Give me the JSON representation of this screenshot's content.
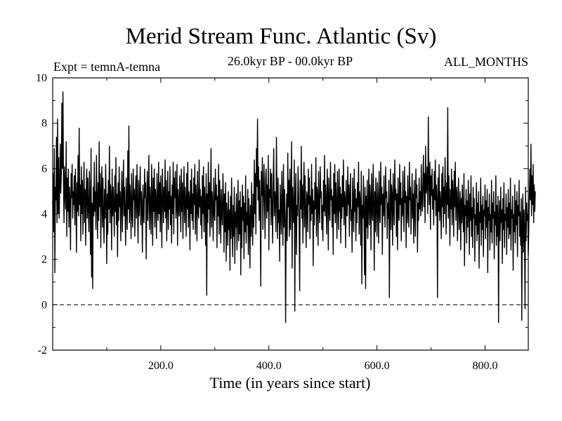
{
  "chart_data": {
    "type": "line",
    "title": "Merid Stream Func. Atlantic (Sv)",
    "subtitle_left": "Expt = temnA-temna",
    "subtitle_center": "26.0kyr BP - 00.0kyr BP",
    "subtitle_right": "ALL_MONTHS",
    "xlabel": "Time (in years since start)",
    "ylabel": "",
    "xlim": [
      0,
      880
    ],
    "ylim": [
      -2,
      10
    ],
    "x_ticks": [
      200,
      400,
      600,
      800
    ],
    "x_tick_labels": [
      "200.0",
      "400.0",
      "600.0",
      "800.0"
    ],
    "y_ticks": [
      -2,
      0,
      2,
      4,
      6,
      8,
      10
    ],
    "y_tick_labels": [
      "-2",
      "0",
      "2",
      "4",
      "6",
      "8",
      "10"
    ],
    "reference_line": {
      "y": 0,
      "style": "dashed"
    },
    "series": [
      {
        "name": "Merid Stream Func. Atlantic",
        "x_start": 0,
        "x_step": 1,
        "values": [
          4.4,
          5.8,
          3.2,
          6.9,
          1.4,
          5.2,
          4.6,
          7.4,
          3.6,
          8.2,
          4.0,
          6.5,
          3.8,
          5.2,
          7.1,
          4.9,
          5.8,
          8.9,
          6.0,
          9.4,
          5.4,
          3.6,
          6.1,
          5.0,
          4.2,
          7.2,
          3.0,
          5.6,
          4.1,
          6.0,
          3.4,
          5.2,
          4.6,
          2.4,
          5.8,
          4.7,
          6.2,
          3.8,
          5.0,
          4.4,
          5.7,
          3.5,
          6.0,
          4.8,
          2.3,
          5.4,
          4.1,
          6.6,
          3.9,
          7.8,
          4.4,
          5.3,
          2.8,
          6.1,
          4.0,
          5.5,
          3.1,
          4.8,
          6.3,
          3.6,
          5.1,
          2.6,
          4.9,
          6.0,
          3.8,
          5.6,
          4.2,
          3.2,
          5.9,
          4.6,
          2.2,
          6.9,
          1.2,
          4.5,
          0.7,
          5.2,
          3.9,
          6.3,
          4.1,
          5.0,
          3.3,
          6.6,
          4.7,
          2.9,
          5.4,
          3.7,
          7.2,
          4.3,
          5.8,
          2.5,
          4.9,
          6.1,
          3.4,
          5.6,
          4.0,
          2.7,
          5.1,
          3.8,
          6.2,
          4.6,
          1.8,
          4.9,
          3.1,
          5.5,
          4.2,
          7.0,
          3.6,
          5.3,
          4.8,
          2.4,
          6.0,
          3.9,
          5.2,
          4.4,
          3.0,
          5.7,
          4.1,
          6.5,
          3.5,
          4.9,
          2.1,
          5.4,
          3.7,
          6.1,
          4.3,
          5.0,
          2.8,
          4.6,
          5.9,
          3.2,
          4.8,
          6.4,
          3.9,
          5.2,
          4.0,
          2.6,
          5.6,
          4.5,
          3.3,
          6.8,
          4.2,
          7.9,
          3.6,
          5.3,
          4.7,
          2.9,
          5.8,
          4.1,
          3.4,
          6.0,
          4.6,
          5.1,
          3.0,
          4.8,
          5.7,
          3.8,
          6.2,
          4.3,
          2.7,
          5.5,
          3.9,
          4.9,
          6.1,
          3.5,
          5.0,
          4.4,
          2.3,
          5.3,
          4.0,
          3.6,
          6.0,
          4.7,
          5.4,
          2.0,
          4.2,
          5.9,
          3.7,
          4.9,
          6.6,
          3.3,
          5.2,
          4.5,
          3.1,
          6.2,
          4.8,
          2.6,
          5.6,
          4.1,
          6.0,
          3.4,
          5.1,
          4.7,
          2.9,
          5.8,
          4.3,
          3.7,
          6.3,
          4.0,
          5.4,
          3.2,
          5.7,
          4.4,
          2.5,
          6.0,
          4.9,
          3.6,
          5.2,
          4.1,
          6.4,
          3.8,
          5.5,
          2.8,
          4.6,
          5.9,
          3.3,
          5.0,
          4.2,
          6.1,
          3.5,
          4.8,
          2.7,
          5.3,
          4.0,
          6.3,
          3.1,
          5.6,
          4.7,
          5.9,
          3.8,
          4.4,
          6.2,
          2.6,
          5.1,
          4.3,
          3.9,
          5.7,
          4.6,
          3.2,
          6.0,
          4.1,
          5.4,
          2.9,
          4.8,
          6.1,
          3.6,
          5.2,
          4.5,
          3.0,
          5.8,
          4.2,
          6.3,
          3.4,
          5.0,
          4.7,
          2.4,
          5.5,
          4.0,
          6.0,
          3.7,
          4.9,
          3.3,
          5.6,
          4.4,
          6.2,
          3.1,
          5.3,
          4.6,
          2.8,
          5.9,
          4.1,
          3.8,
          6.4,
          4.3,
          5.1,
          3.5,
          4.8,
          2.9,
          5.7,
          4.0,
          6.1,
          3.2,
          5.2,
          4.5,
          2.6,
          5.8,
          0.4,
          4.9,
          3.6,
          6.3,
          4.2,
          5.4,
          3.0,
          4.7,
          6.9,
          3.4,
          5.0,
          4.4,
          2.8,
          5.6,
          4.1,
          3.7,
          6.0,
          4.6,
          5.3,
          2.5,
          4.8,
          3.9,
          6.2,
          3.1,
          5.5,
          4.3,
          2.7,
          5.1,
          4.0,
          3.5,
          5.8,
          4.7,
          2.3,
          4.9,
          3.2,
          5.4,
          1.9,
          4.5,
          3.8,
          2.6,
          5.0,
          3.3,
          4.2,
          1.5,
          4.8,
          2.9,
          5.6,
          3.6,
          2.1,
          4.4,
          3.0,
          5.2,
          1.8,
          4.1,
          3.4,
          4.9,
          2.4,
          3.9,
          5.5,
          2.8,
          4.6,
          3.1,
          5.0,
          1.3,
          4.3,
          2.5,
          5.3,
          3.7,
          4.8,
          2.0,
          4.5,
          3.2,
          5.7,
          2.7,
          4.1,
          3.5,
          5.1,
          2.2,
          4.7,
          3.8,
          1.6,
          4.4,
          3.0,
          5.4,
          3.9,
          2.6,
          4.9,
          3.4,
          6.4,
          4.0,
          5.8,
          3.1,
          6.9,
          5.2,
          8.2,
          4.6,
          6.1,
          3.7,
          5.5,
          4.2,
          0.8,
          5.9,
          4.8,
          6.5,
          3.3,
          5.0,
          6.2,
          4.4,
          2.9,
          5.6,
          6.0,
          3.8,
          5.3,
          4.1,
          6.6,
          2.4,
          5.1,
          4.7,
          6.0,
          3.5,
          5.8,
          4.3,
          2.7,
          5.4,
          6.9,
          3.9,
          5.0,
          4.6,
          3.2,
          7.4,
          4.8,
          2.9,
          5.6,
          3.6,
          4.2,
          1.9,
          5.3,
          4.0,
          3.1,
          5.9,
          4.5,
          2.6,
          6.2,
          3.4,
          5.1,
          4.1,
          -0.8,
          3.7,
          4.9,
          2.8,
          6.7,
          4.3,
          5.5,
          3.0,
          6.0,
          3.3,
          4.8,
          7.2,
          1.6,
          5.2,
          4.0,
          3.6,
          6.4,
          -0.3,
          4.6,
          5.8,
          2.2,
          4.4,
          3.9,
          6.1,
          5.0,
          3.5,
          0.6,
          5.5,
          4.2,
          7.0,
          3.8,
          5.3,
          2.7,
          4.9,
          6.3,
          3.4,
          5.7,
          4.1,
          2.5,
          5.0,
          4.7,
          3.2,
          6.0,
          4.4,
          5.6,
          2.9,
          4.8,
          3.7,
          6.2,
          4.0,
          5.1,
          1.7,
          4.6,
          3.5,
          5.4,
          4.2,
          6.5,
          3.0,
          5.2,
          4.8,
          2.6,
          5.9,
          4.3,
          3.6,
          6.1,
          4.7,
          5.0,
          3.3,
          4.4,
          2.8,
          5.5,
          4.1,
          6.6,
          3.9,
          5.3,
          4.5,
          3.1,
          6.0,
          4.9,
          2.4,
          5.6,
          4.2,
          3.7,
          6.3,
          4.6,
          5.1,
          3.4,
          4.8,
          2.2,
          5.8,
          4.0,
          6.2,
          3.6,
          5.4,
          4.4,
          2.9,
          5.9,
          4.7,
          3.3,
          6.0,
          4.1,
          5.2,
          2.7,
          4.9,
          3.8,
          5.7,
          4.3,
          6.4,
          3.5,
          5.0,
          4.6,
          2.5,
          5.5,
          4.0,
          3.9,
          6.1,
          4.4,
          5.3,
          3.0,
          4.8,
          5.8,
          3.7,
          4.2,
          2.3,
          5.6,
          4.5,
          3.2,
          6.0,
          4.1,
          5.1,
          2.8,
          4.7,
          3.6,
          5.4,
          4.3,
          6.3,
          3.1,
          5.0,
          4.6,
          2.6,
          5.9,
          0.9,
          4.4,
          3.8,
          5.7,
          4.0,
          1.3,
          5.2,
          0.7,
          4.8,
          3.4,
          5.5,
          2.9,
          4.2,
          6.0,
          3.5,
          5.3,
          4.7,
          2.4,
          5.8,
          4.1,
          3.7,
          6.2,
          4.5,
          1.5,
          5.0,
          3.2,
          5.6,
          4.3,
          3.0,
          5.4,
          4.6,
          2.7,
          5.9,
          4.0,
          3.6,
          6.3,
          4.4,
          5.2,
          2.2,
          4.9,
          3.9,
          5.7,
          4.2,
          3.4,
          6.1,
          4.7,
          5.0,
          2.9,
          4.5,
          3.8,
          5.5,
          0.3,
          4.1,
          6.0,
          3.3,
          5.3,
          4.8,
          2.6,
          5.8,
          4.3,
          3.5,
          6.4,
          4.6,
          5.1,
          3.0,
          4.9,
          2.4,
          5.6,
          4.0,
          3.7,
          6.2,
          4.4,
          5.4,
          2.8,
          4.7,
          3.9,
          5.9,
          4.2,
          3.2,
          6.1,
          4.5,
          5.0,
          2.5,
          4.8,
          3.6,
          5.7,
          4.1,
          3.4,
          6.3,
          4.6,
          5.2,
          3.1,
          4.4,
          5.8,
          3.8,
          4.9,
          2.7,
          5.5,
          4.3,
          3.0,
          6.0,
          4.7,
          5.3,
          2.3,
          4.5,
          3.7,
          5.6,
          4.2,
          5.0,
          3.9,
          6.2,
          4.6,
          4.1,
          5.4,
          6.6,
          4.3,
          5.8,
          3.6,
          7.0,
          4.9,
          5.2,
          6.1,
          4.0,
          8.3,
          5.5,
          4.4,
          6.3,
          3.3,
          5.7,
          4.8,
          6.0,
          4.2,
          5.1,
          3.5,
          5.9,
          4.6,
          6.4,
          3.9,
          5.3,
          4.7,
          0.3,
          5.6,
          4.1,
          6.2,
          3.7,
          5.0,
          4.5,
          2.9,
          5.8,
          4.3,
          6.1,
          3.4,
          5.2,
          4.0,
          6.5,
          4.8,
          3.1,
          5.4,
          4.4,
          8.7,
          3.8,
          5.7,
          4.6,
          2.6,
          5.1,
          4.2,
          6.0,
          3.5,
          5.5,
          4.9,
          3.0,
          5.9,
          4.3,
          6.3,
          3.7,
          4.8,
          5.2,
          2.8,
          4.5,
          5.6,
          3.3,
          4.1,
          5.0,
          2.4,
          4.7,
          3.6,
          5.3,
          4.0,
          3.2,
          5.8,
          1.7,
          4.4,
          3.9,
          5.1,
          2.7,
          4.6,
          3.4,
          5.5,
          4.2,
          2.2,
          4.9,
          3.7,
          5.7,
          3.0,
          4.3,
          2.5,
          5.2,
          3.8,
          4.7,
          1.9,
          4.0,
          3.5,
          5.4,
          2.8,
          4.5,
          3.1,
          5.0,
          1.6,
          4.1,
          3.6,
          5.6,
          2.6,
          4.4,
          3.3,
          4.8,
          2.1,
          4.2,
          3.9,
          5.3,
          2.9,
          4.6,
          3.4,
          5.1,
          1.4,
          4.3,
          3.7,
          4.9,
          2.4,
          4.0,
          3.2,
          5.5,
          2.7,
          4.5,
          3.8,
          5.0,
          2.0,
          4.1,
          3.5,
          5.7,
          2.6,
          4.4,
          3.0,
          4.8,
          -0.8,
          3.9,
          4.6,
          2.8,
          5.2,
          3.6,
          4.2,
          1.8,
          4.7,
          3.3,
          5.4,
          2.5,
          4.0,
          3.7,
          4.9,
          2.2,
          4.3,
          3.4,
          5.1,
          2.9,
          4.5,
          3.1,
          5.6,
          2.4,
          4.2,
          3.8,
          4.8,
          1.5,
          4.0,
          3.2,
          5.3,
          2.7,
          4.6,
          3.5,
          5.0,
          2.1,
          4.4,
          3.9,
          5.5,
          3.0,
          4.1,
          2.6,
          4.7,
          -0.7,
          3.6,
          4.9,
          2.3,
          4.2,
          3.3,
          -0.2,
          5.2,
          2.8,
          4.5,
          3.7,
          4.0,
          2.2,
          3.4,
          4.8,
          6.0,
          4.6,
          7.1,
          3.9,
          5.7,
          4.4,
          6.2,
          3.6,
          5.3,
          4.1,
          5.0
        ]
      }
    ]
  }
}
